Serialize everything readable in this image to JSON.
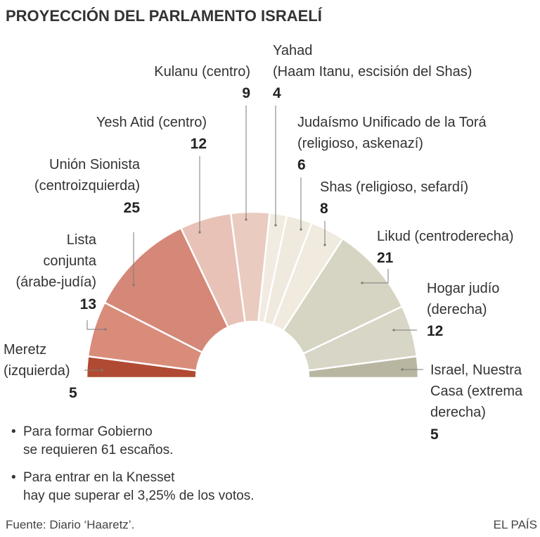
{
  "chart_data": {
    "type": "pie",
    "subtype": "semicircle-parliament",
    "title": "PROYECCIÓN DEL PARLAMENTO ISRAELÍ",
    "unit": "escaños",
    "total": 120,
    "parties": [
      {
        "name": [
          "Meretz",
          "(izquierda)"
        ],
        "seats": 5,
        "color": "#b04a32"
      },
      {
        "name": [
          "Lista",
          "conjunta",
          "(árabe-judía)"
        ],
        "seats": 13,
        "color": "#d98c7a"
      },
      {
        "name": [
          "Unión Sionista",
          "(centroizquierda)"
        ],
        "seats": 25,
        "color": "#d58878"
      },
      {
        "name": [
          "Yesh Atid (centro)"
        ],
        "seats": 12,
        "color": "#e8c2b6"
      },
      {
        "name": [
          "Kulanu (centro)"
        ],
        "seats": 9,
        "color": "#eacbc0"
      },
      {
        "name": [
          "Yahad",
          "(Haam Itanu, escisión del Shas)"
        ],
        "seats": 4,
        "color": "#f1ebe1"
      },
      {
        "name": [
          "Judaísmo Unificado de la Torá",
          "(religioso, askenazí)"
        ],
        "seats": 6,
        "color": "#efe9de"
      },
      {
        "name": [
          "Shas (religioso, sefardí)"
        ],
        "seats": 8,
        "color": "#f0eadf"
      },
      {
        "name": [
          "Likud (centroderecha)"
        ],
        "seats": 21,
        "color": "#d6d4c2"
      },
      {
        "name": [
          "Hogar judío",
          "(derecha)"
        ],
        "seats": 12,
        "color": "#d8d6c6"
      },
      {
        "name": [
          "Israel, Nuestra",
          "Casa (extrema",
          "derecha)"
        ],
        "seats": 5,
        "color": "#b8b6a0"
      }
    ]
  },
  "notes": [
    [
      "Para formar Gobierno",
      "se requieren 61 escaños."
    ],
    [
      "Para  entrar en la Knesset",
      "hay que superar el 3,25% de los votos."
    ]
  ],
  "bullet": "•",
  "source": "Fuente: Diario ‘Haaretz’.",
  "credit": "EL PAÍS"
}
